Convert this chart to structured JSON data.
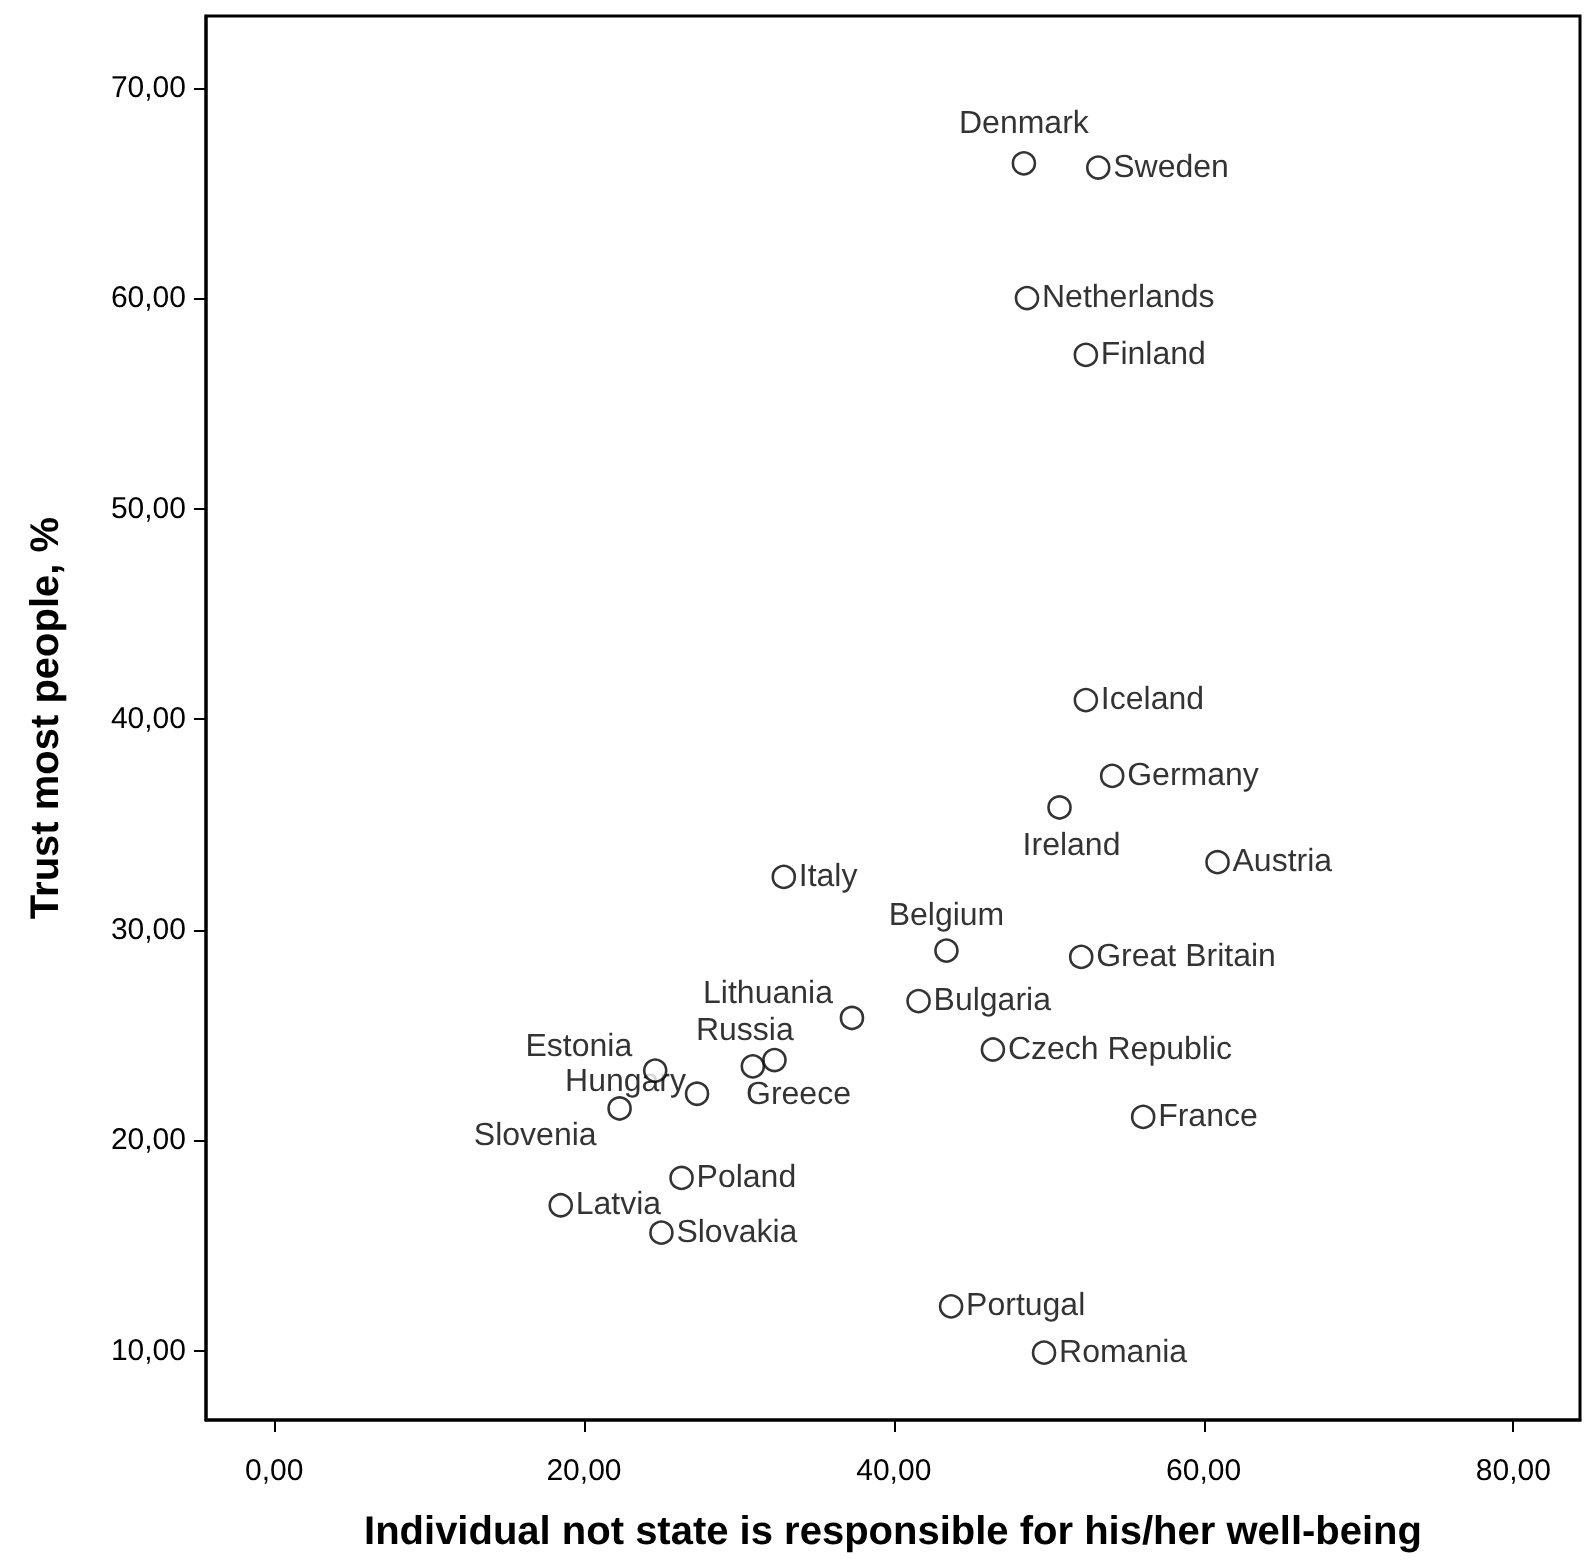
{
  "chart_data": {
    "type": "scatter",
    "xlabel": "Individual not state is responsible for his/her well-being",
    "ylabel": "Trust most people, %",
    "x": [
      48.4,
      53.2,
      48.6,
      52.4,
      52.4,
      54.1,
      50.7,
      60.9,
      32.9,
      43.4,
      52.1,
      41.6,
      37.3,
      30.9,
      32.3,
      46.4,
      56.1,
      24.6,
      27.3,
      22.3,
      26.3,
      18.5,
      25.0,
      43.7,
      49.7
    ],
    "values": [
      66.4,
      66.2,
      60.0,
      57.3,
      40.9,
      37.3,
      35.8,
      33.2,
      32.5,
      29.0,
      28.7,
      26.6,
      25.8,
      23.5,
      23.8,
      24.3,
      21.1,
      23.3,
      22.2,
      21.5,
      18.2,
      16.9,
      15.6,
      12.1,
      9.9
    ],
    "color": "#000000",
    "marker": "circle",
    "annotations": [
      {
        "text": "Denmark",
        "x": 48.4,
        "y": 66.4
      },
      {
        "text": "Sweden",
        "x": 53.2,
        "y": 66.2
      },
      {
        "text": "Netherlands",
        "x": 48.6,
        "y": 60.0
      },
      {
        "text": "Finland",
        "x": 52.4,
        "y": 57.3
      },
      {
        "text": "Iceland",
        "x": 52.4,
        "y": 40.9
      },
      {
        "text": "Germany",
        "x": 54.1,
        "y": 37.3
      },
      {
        "text": "Ireland",
        "x": 50.7,
        "y": 35.8
      },
      {
        "text": "Austria",
        "x": 60.9,
        "y": 33.2
      },
      {
        "text": "Italy",
        "x": 32.9,
        "y": 32.5
      },
      {
        "text": "Belgium",
        "x": 43.4,
        "y": 29.0
      },
      {
        "text": "Great Britain",
        "x": 52.1,
        "y": 28.7
      },
      {
        "text": "Bulgaria",
        "x": 41.6,
        "y": 26.6
      },
      {
        "text": "Lithuania",
        "x": 37.3,
        "y": 25.8
      },
      {
        "text": "Russia",
        "x": 30.9,
        "y": 23.5
      },
      {
        "text": "Greece",
        "x": 32.3,
        "y": 23.8
      },
      {
        "text": "Czech Republic",
        "x": 46.4,
        "y": 24.3
      },
      {
        "text": "France",
        "x": 56.1,
        "y": 21.1
      },
      {
        "text": "Estonia",
        "x": 24.6,
        "y": 23.3
      },
      {
        "text": "Hungary",
        "x": 27.3,
        "y": 22.2
      },
      {
        "text": "Slovenia",
        "x": 22.3,
        "y": 21.5
      },
      {
        "text": "Poland",
        "x": 26.3,
        "y": 18.2
      },
      {
        "text": "Latvia",
        "x": 18.5,
        "y": 16.9
      },
      {
        "text": "Slovakia",
        "x": 25.0,
        "y": 15.6
      },
      {
        "text": "Portugal",
        "x": 43.7,
        "y": 12.1
      },
      {
        "text": "Romania",
        "x": 49.7,
        "y": 9.9
      }
    ],
    "xlim": [
      -4.4,
      84.3
    ],
    "xticks": [
      {
        "value": 0,
        "label": "0,00"
      },
      {
        "value": 20,
        "label": "20,00"
      },
      {
        "value": 40,
        "label": "40,00"
      },
      {
        "value": 60,
        "label": "60,00"
      },
      {
        "value": 80,
        "label": "80,00"
      }
    ],
    "ylim": [
      6.7,
      73.4
    ],
    "yticks": [
      {
        "value": 10,
        "label": "10,00"
      },
      {
        "value": 20,
        "label": "20,00"
      },
      {
        "value": 30,
        "label": "30,00"
      },
      {
        "value": 40,
        "label": "40,00"
      },
      {
        "value": 50,
        "label": "50,00"
      },
      {
        "value": 60,
        "label": "60,00"
      },
      {
        "value": 70,
        "label": "70,00"
      }
    ],
    "grid": false
  }
}
